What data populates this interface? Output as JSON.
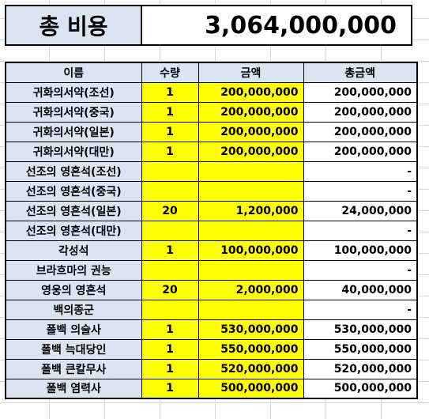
{
  "summary": {
    "label": "총 비용",
    "value": "3,064,000,000"
  },
  "table": {
    "headers": [
      "이름",
      "수량",
      "금액",
      "총금액"
    ],
    "rows": [
      {
        "name": "귀화의서약(조선)",
        "qty": "1",
        "price": "200,000,000",
        "total": "200,000,000"
      },
      {
        "name": "귀화의서약(중국)",
        "qty": "1",
        "price": "200,000,000",
        "total": "200,000,000"
      },
      {
        "name": "귀화의서약(일본)",
        "qty": "1",
        "price": "200,000,000",
        "total": "200,000,000"
      },
      {
        "name": "귀화의서약(대만)",
        "qty": "1",
        "price": "200,000,000",
        "total": "200,000,000"
      },
      {
        "name": "선조의 영혼석(조선)",
        "qty": "",
        "price": "",
        "total": "-"
      },
      {
        "name": "선조의 영혼석(중국)",
        "qty": "",
        "price": "",
        "total": "-"
      },
      {
        "name": "선조의 영혼석(일본)",
        "qty": "20",
        "price": "1,200,000",
        "total": "24,000,000"
      },
      {
        "name": "선조의 영혼석(대만)",
        "qty": "",
        "price": "",
        "total": "-"
      },
      {
        "name": "각성석",
        "qty": "1",
        "price": "100,000,000",
        "total": "100,000,000"
      },
      {
        "name": "브라흐마의 권능",
        "qty": "",
        "price": "",
        "total": "-"
      },
      {
        "name": "영웅의 영혼석",
        "qty": "20",
        "price": "2,000,000",
        "total": "40,000,000"
      },
      {
        "name": "백의종군",
        "qty": "",
        "price": "",
        "total": "-"
      },
      {
        "name": "폴백 의술사",
        "qty": "1",
        "price": "530,000,000",
        "total": "530,000,000"
      },
      {
        "name": "폴백 늑대당인",
        "qty": "1",
        "price": "550,000,000",
        "total": "550,000,000"
      },
      {
        "name": "폴백 큰칼무사",
        "qty": "1",
        "price": "520,000,000",
        "total": "520,000,000"
      },
      {
        "name": "폴백 염력사",
        "qty": "1",
        "price": "500,000,000",
        "total": "500,000,000"
      }
    ]
  }
}
